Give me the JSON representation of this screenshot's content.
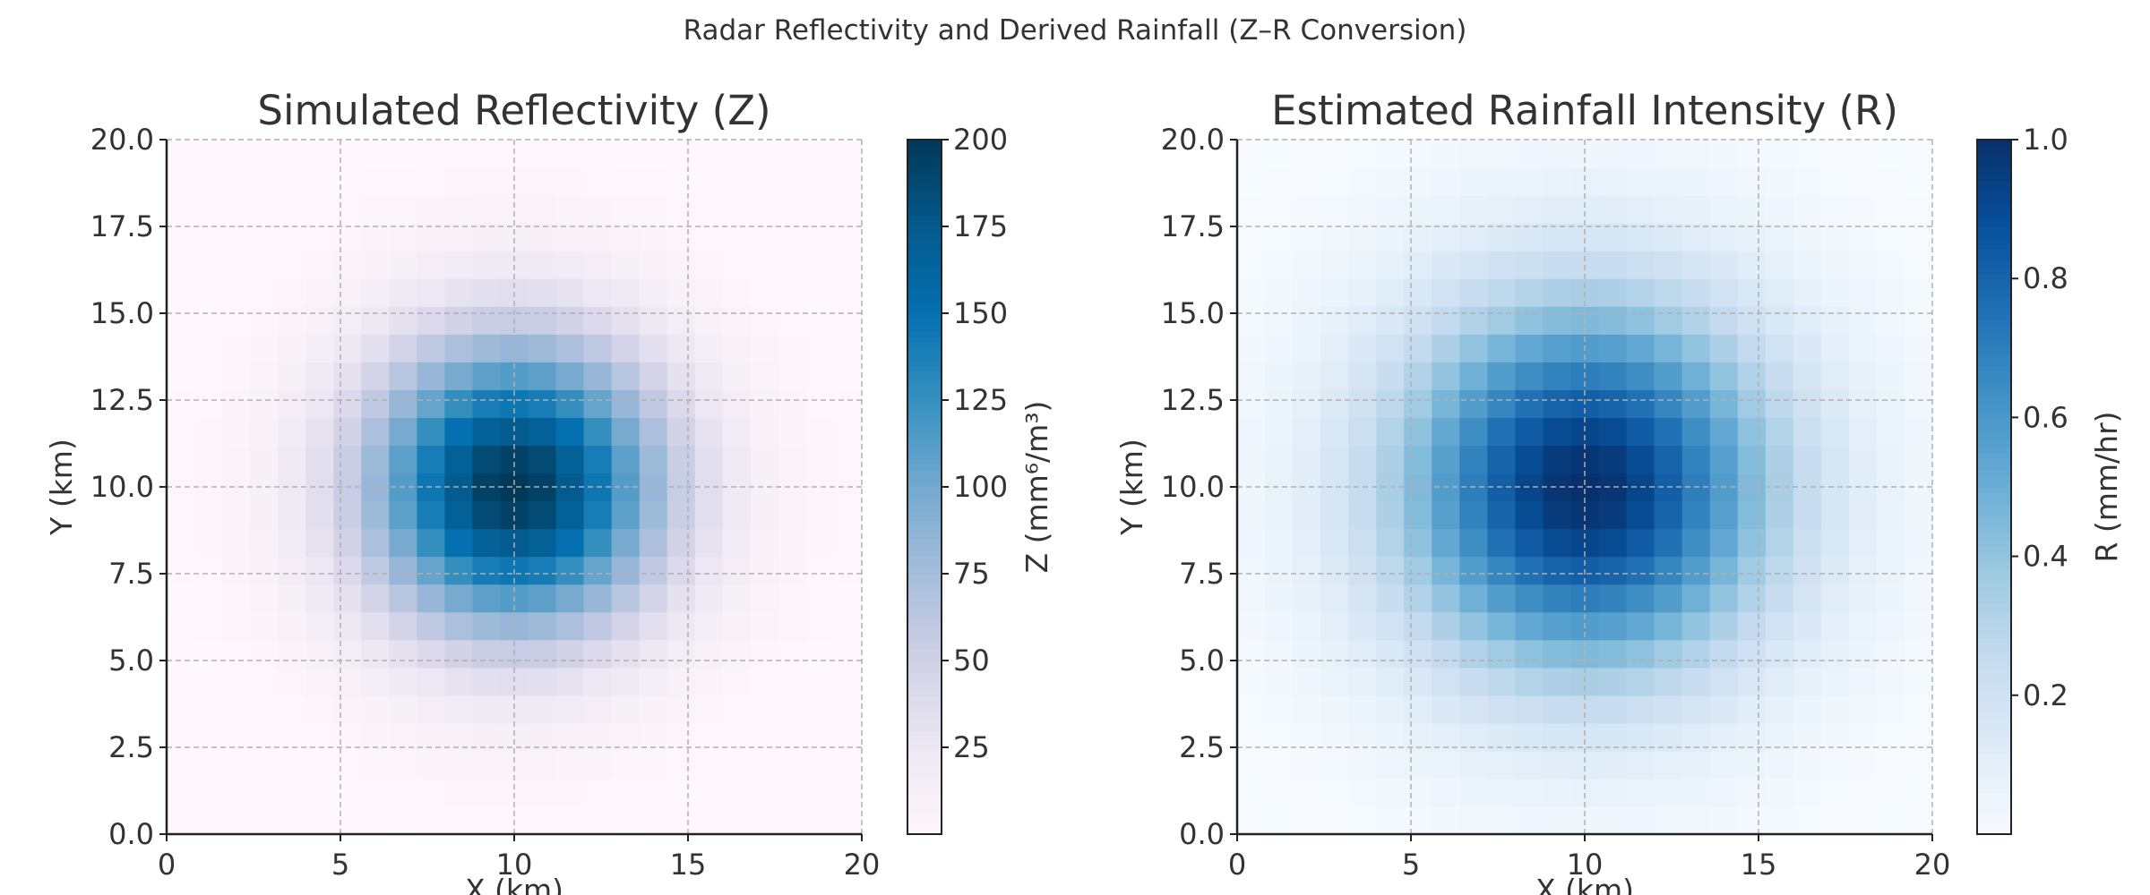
{
  "figure_title": "Radar Reflectivity and Derived Rainfall (Z–R Conversion)",
  "chart_data": [
    {
      "type": "heatmap",
      "title": "Simulated Reflectivity (Z)",
      "xlabel": "X (km)",
      "ylabel": "Y (km)",
      "xlim": [
        0,
        20
      ],
      "ylim": [
        0,
        20
      ],
      "x_ticks": [
        "0",
        "5",
        "10",
        "15",
        "20"
      ],
      "y_ticks": [
        "0.0",
        "2.5",
        "5.0",
        "7.5",
        "10.0",
        "12.5",
        "15.0",
        "17.5",
        "20.0"
      ],
      "grid": true,
      "grid_cells": 25,
      "field": "gaussian",
      "center": [
        10,
        10
      ],
      "peak": 200,
      "sigma_km": 3,
      "colormap": "PuBu",
      "colorbar": {
        "label": "Z (mm⁶/m³)",
        "ticks": [
          "25",
          "50",
          "75",
          "100",
          "125",
          "150",
          "175",
          "200"
        ],
        "range": [
          0,
          200
        ]
      }
    },
    {
      "type": "heatmap",
      "title": "Estimated Rainfall Intensity (R)",
      "xlabel": "X (km)",
      "ylabel": "Y (km)",
      "xlim": [
        0,
        20
      ],
      "ylim": [
        0,
        20
      ],
      "x_ticks": [
        "0",
        "5",
        "10",
        "15",
        "20"
      ],
      "y_ticks": [
        "0.0",
        "2.5",
        "5.0",
        "7.5",
        "10.0",
        "12.5",
        "15.0",
        "17.5",
        "20.0"
      ],
      "grid": true,
      "grid_cells": 25,
      "field": "Z-R conversion R = (Z/200)^(1/1.6)",
      "peak": 1.0,
      "colormap": "Blues",
      "colorbar": {
        "label": "R (mm/hr)",
        "ticks": [
          "0.2",
          "0.4",
          "0.6",
          "0.8",
          "1.0"
        ],
        "range": [
          0,
          1
        ]
      }
    }
  ]
}
